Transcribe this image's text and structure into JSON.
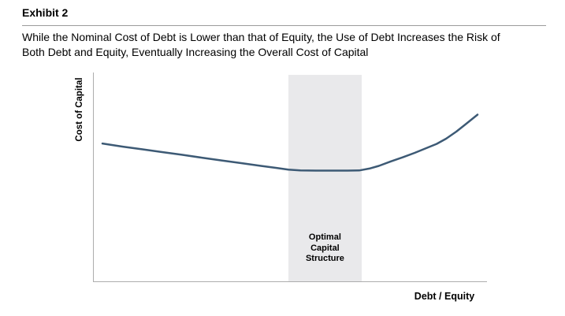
{
  "header": {
    "exhibit_label": "Exhibit 2",
    "subtitle_line1": "While the Nominal Cost of Debt is Lower than that of Equity, the Use of Debt Increases the Risk of",
    "subtitle_line2": "Both Debt and Equity, Eventually Increasing the Overall Cost of Capital"
  },
  "chart": {
    "y_axis_label": "Cost of Capital",
    "x_axis_label": "Debt / Equity",
    "band_label": [
      "Optimal",
      "Capital",
      "Structure"
    ]
  },
  "colors": {
    "line": "#3d5a75",
    "band": "#e9e9eb",
    "axis": "#adadad",
    "rule": "#9b9b9b",
    "text": "#000000"
  },
  "chart_data": {
    "type": "line",
    "title": "Exhibit 2",
    "subtitle": "While the Nominal Cost of Debt is Lower than that of Equity, the Use of Debt Increases the Risk of Both Debt and Equity, Eventually Increasing the Overall Cost of Capital",
    "xlabel": "Debt / Equity",
    "ylabel": "Cost of Capital",
    "x_ticks": [],
    "y_ticks": [],
    "grid": false,
    "legend": false,
    "axes_note": "conceptual axes without numeric scale; values below are normalized fractions of the plot area (x: 0=origin, 1=axis end; y: 0=x-axis, 1=plot top)",
    "series": [
      {
        "name": "Overall Cost of Capital",
        "points": [
          [
            0.022,
            0.66
          ],
          [
            0.074,
            0.645
          ],
          [
            0.124,
            0.632
          ],
          [
            0.174,
            0.619
          ],
          [
            0.224,
            0.606
          ],
          [
            0.275,
            0.592
          ],
          [
            0.325,
            0.579
          ],
          [
            0.375,
            0.566
          ],
          [
            0.425,
            0.553
          ],
          [
            0.465,
            0.543
          ],
          [
            0.495,
            0.535
          ],
          [
            0.525,
            0.531
          ],
          [
            0.565,
            0.53
          ],
          [
            0.605,
            0.53
          ],
          [
            0.645,
            0.53
          ],
          [
            0.675,
            0.531
          ],
          [
            0.701,
            0.54
          ],
          [
            0.725,
            0.553
          ],
          [
            0.755,
            0.574
          ],
          [
            0.786,
            0.594
          ],
          [
            0.816,
            0.615
          ],
          [
            0.846,
            0.638
          ],
          [
            0.872,
            0.658
          ],
          [
            0.896,
            0.683
          ],
          [
            0.922,
            0.717
          ],
          [
            0.946,
            0.753
          ],
          [
            0.962,
            0.777
          ],
          [
            0.976,
            0.798
          ]
        ]
      }
    ],
    "band": {
      "label": "Optimal Capital Structure",
      "x0": 0.495,
      "x1": 0.681
    }
  }
}
